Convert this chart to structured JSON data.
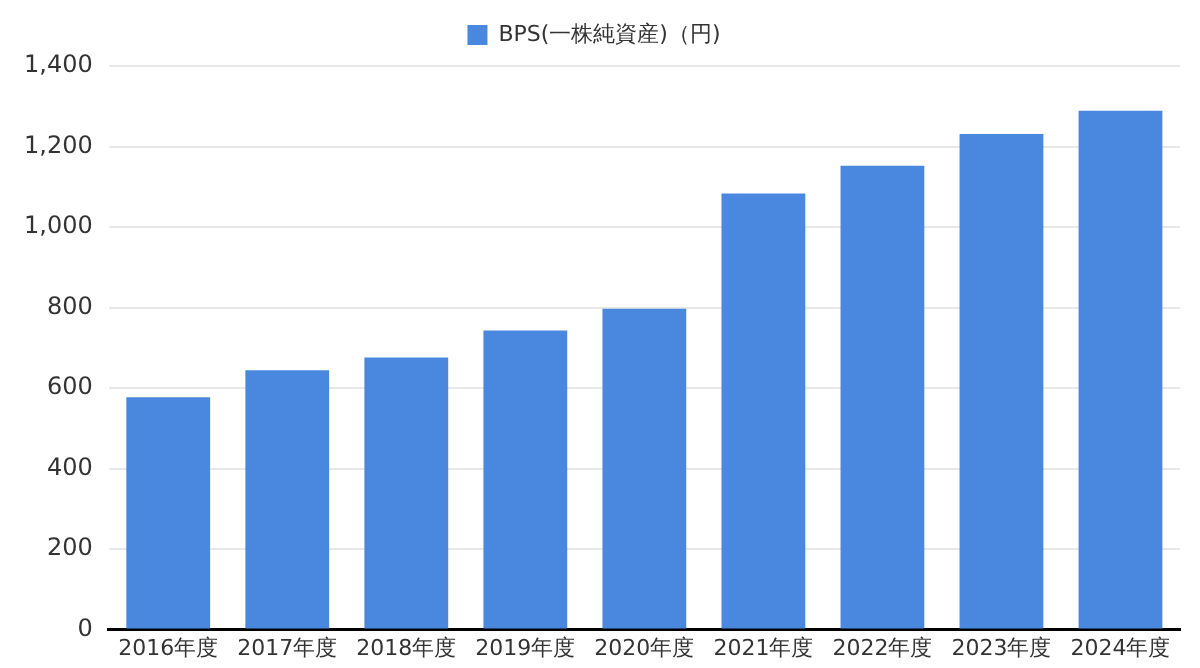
{
  "chart_data": {
    "type": "bar",
    "categories": [
      "2016年度",
      "2017年度",
      "2018年度",
      "2019年度",
      "2020年度",
      "2021年度",
      "2022年度",
      "2023年度",
      "2024年度"
    ],
    "series": [
      {
        "name": "BPS(一株純資産)（円)",
        "color": "#4a88e0",
        "values": [
          577,
          644,
          676,
          743,
          797,
          1083,
          1152,
          1231,
          1289
        ]
      }
    ],
    "ylim": [
      0,
      1400
    ],
    "yticks": [
      {
        "value": 0,
        "label": "0"
      },
      {
        "value": 200,
        "label": "200"
      },
      {
        "value": 400,
        "label": "400"
      },
      {
        "value": 600,
        "label": "600"
      },
      {
        "value": 800,
        "label": "800"
      },
      {
        "value": 1000,
        "label": "1,000"
      },
      {
        "value": 1200,
        "label": "1,200"
      },
      {
        "value": 1400,
        "label": "1,400"
      }
    ],
    "grid": "y",
    "legend": "top"
  }
}
